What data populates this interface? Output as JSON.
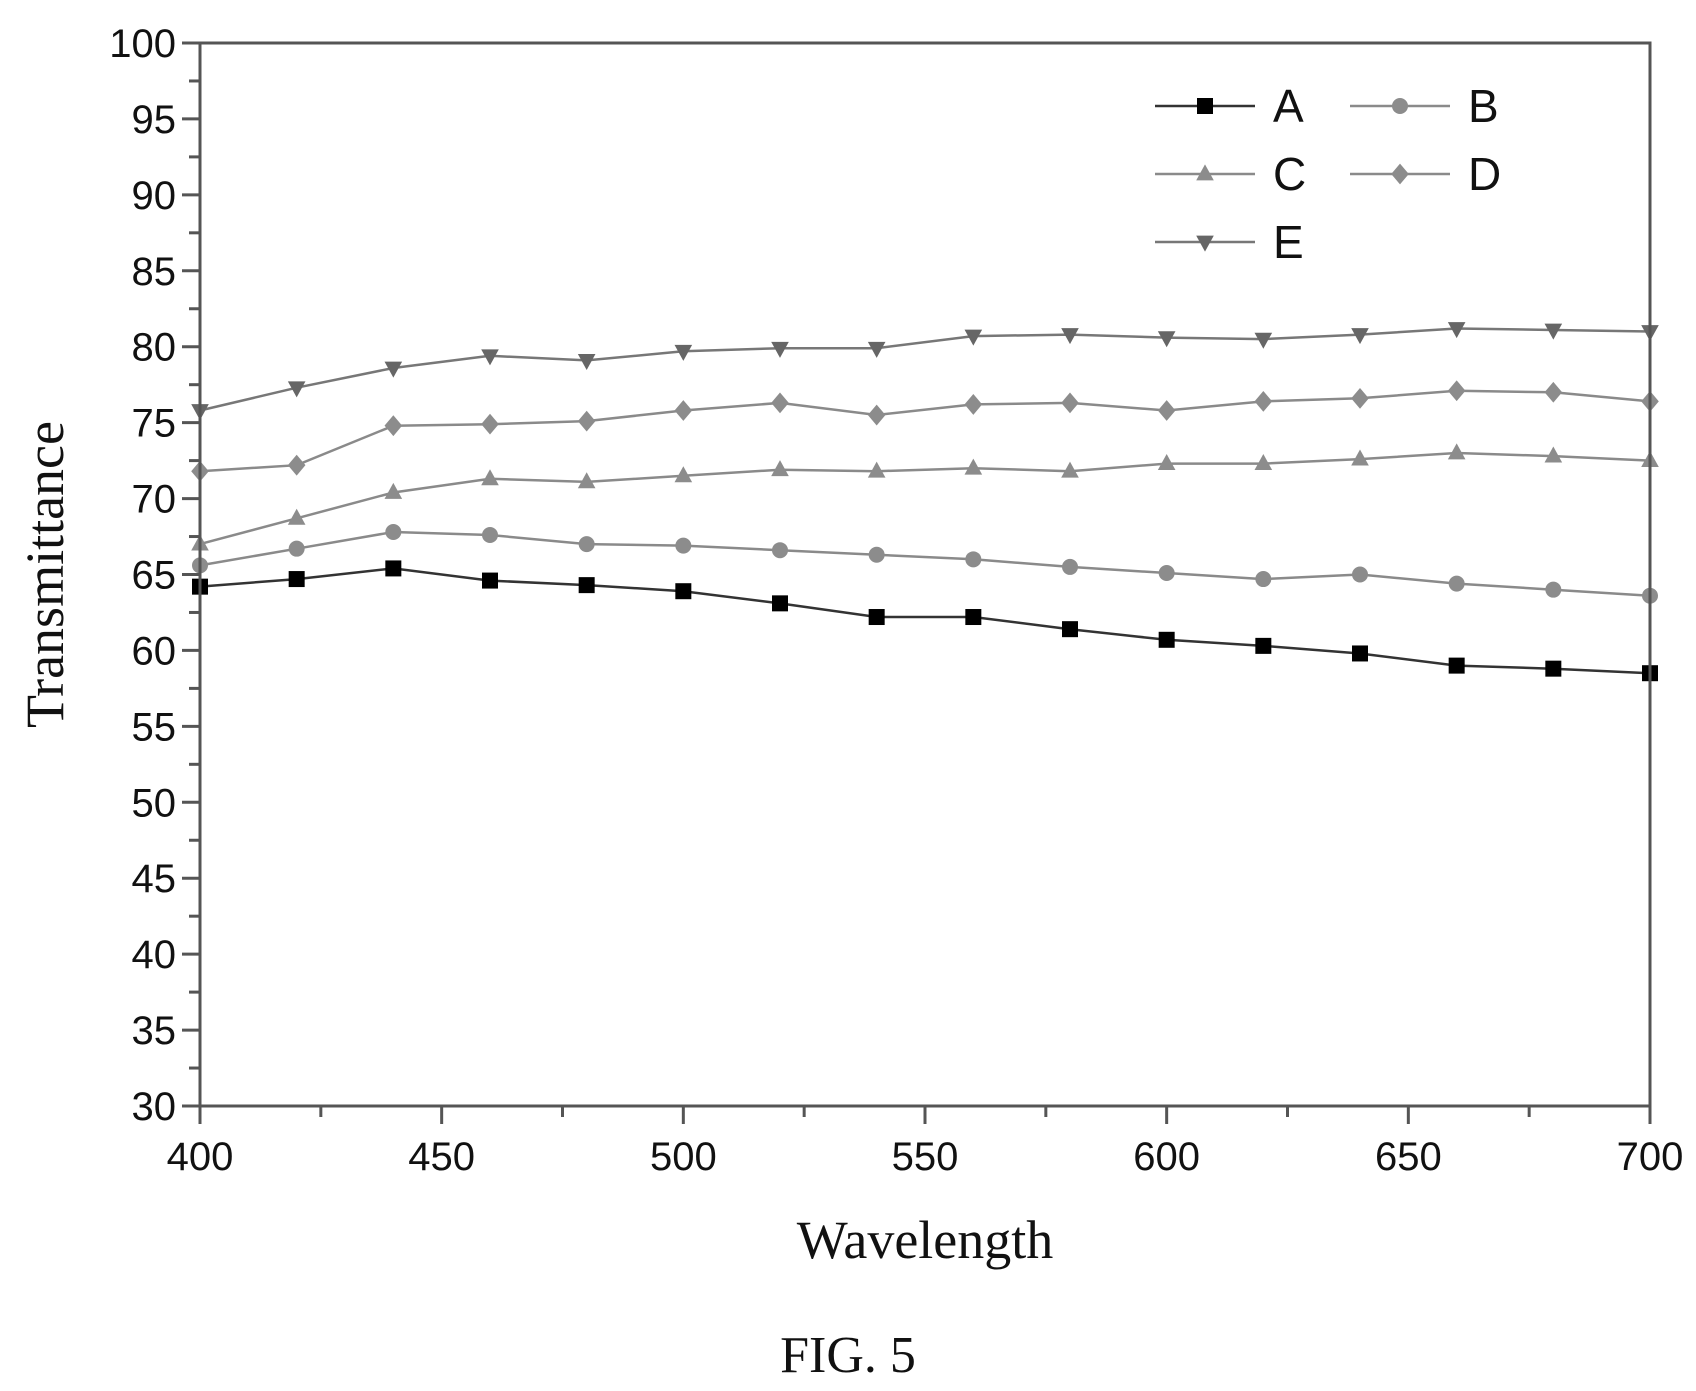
{
  "caption": "FIG. 5",
  "chart_data": {
    "type": "line",
    "title": "",
    "xlabel": "Wavelength",
    "ylabel": "Transmittance",
    "xlim": [
      400,
      700
    ],
    "ylim": [
      30,
      100
    ],
    "x_ticks": [
      400,
      450,
      500,
      550,
      600,
      650,
      700
    ],
    "y_ticks": [
      30,
      35,
      40,
      45,
      50,
      55,
      60,
      65,
      70,
      75,
      80,
      85,
      90,
      95,
      100
    ],
    "grid": false,
    "legend_position": "top-right",
    "x": [
      400,
      420,
      440,
      460,
      480,
      500,
      520,
      540,
      560,
      580,
      600,
      620,
      640,
      660,
      680,
      700
    ],
    "series": [
      {
        "name": "A",
        "marker": "square",
        "color": "#000000",
        "line_color": "#333333",
        "values": [
          64.2,
          64.7,
          65.4,
          64.6,
          64.3,
          63.9,
          63.1,
          62.2,
          62.2,
          61.4,
          60.7,
          60.3,
          59.8,
          59.0,
          58.8,
          58.5
        ]
      },
      {
        "name": "B",
        "marker": "circle",
        "color": "#8c8c8c",
        "line_color": "#8a8a8a",
        "values": [
          65.6,
          66.7,
          67.8,
          67.6,
          67.0,
          66.9,
          66.6,
          66.3,
          66.0,
          65.5,
          65.1,
          64.7,
          65.0,
          64.4,
          64.0,
          63.6
        ]
      },
      {
        "name": "C",
        "marker": "triangle-up",
        "color": "#8c8c8c",
        "line_color": "#8a8a8a",
        "values": [
          67.0,
          68.7,
          70.4,
          71.3,
          71.1,
          71.5,
          71.9,
          71.8,
          72.0,
          71.8,
          72.3,
          72.3,
          72.6,
          73.0,
          72.8,
          72.5
        ]
      },
      {
        "name": "D",
        "marker": "diamond",
        "color": "#8c8c8c",
        "line_color": "#8a8a8a",
        "values": [
          71.8,
          72.2,
          74.8,
          74.9,
          75.1,
          75.8,
          76.3,
          75.5,
          76.2,
          76.3,
          75.8,
          76.4,
          76.6,
          77.1,
          77.0,
          76.4
        ]
      },
      {
        "name": "E",
        "marker": "triangle-down",
        "color": "#666666",
        "line_color": "#777777",
        "values": [
          75.8,
          77.3,
          78.6,
          79.4,
          79.1,
          79.7,
          79.9,
          79.9,
          80.7,
          80.8,
          80.6,
          80.5,
          80.8,
          81.2,
          81.1,
          81.0
        ]
      }
    ]
  }
}
